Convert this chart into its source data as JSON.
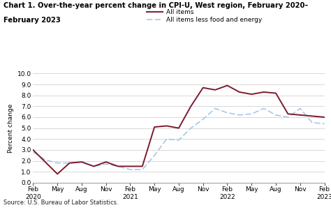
{
  "title_line1": "Chart 1. Over-the-year percent change in CPI-U, West region, February 2020–",
  "title_line2": "February 2023",
  "ylabel": "Percent change",
  "source": "Source: U.S. Bureau of Labor Statistics.",
  "ylim": [
    0.0,
    10.0
  ],
  "yticks": [
    0.0,
    1.0,
    2.0,
    3.0,
    4.0,
    5.0,
    6.0,
    7.0,
    8.0,
    9.0,
    10.0
  ],
  "legend_labels": [
    "All items",
    "All items less food and energy"
  ],
  "all_items_color": "#7b1a2e",
  "core_color": "#a8c8e8",
  "x_tick_labels": [
    "Feb\n2020",
    "May",
    "Aug",
    "Nov",
    "Feb\n2021",
    "May",
    "Aug",
    "Nov",
    "Feb\n2022",
    "May",
    "Aug",
    "Nov",
    "Feb\n2023"
  ],
  "all_items": [
    3.0,
    1.9,
    0.8,
    1.8,
    1.9,
    1.5,
    1.9,
    1.5,
    1.5,
    1.5,
    5.1,
    5.2,
    5.0,
    7.0,
    8.7,
    8.5,
    8.9,
    8.3,
    8.1,
    8.3,
    8.2,
    6.3,
    6.2,
    6.1,
    6.0
  ],
  "core": [
    2.8,
    2.1,
    1.8,
    1.8,
    1.9,
    1.5,
    1.7,
    1.5,
    1.2,
    1.2,
    2.5,
    4.0,
    3.9,
    5.0,
    5.8,
    6.8,
    6.4,
    6.2,
    6.3,
    6.8,
    6.2,
    6.0,
    6.8,
    5.5,
    5.4
  ],
  "n_points": 25,
  "background_color": "#ffffff",
  "grid_color": "#c8c8c8"
}
